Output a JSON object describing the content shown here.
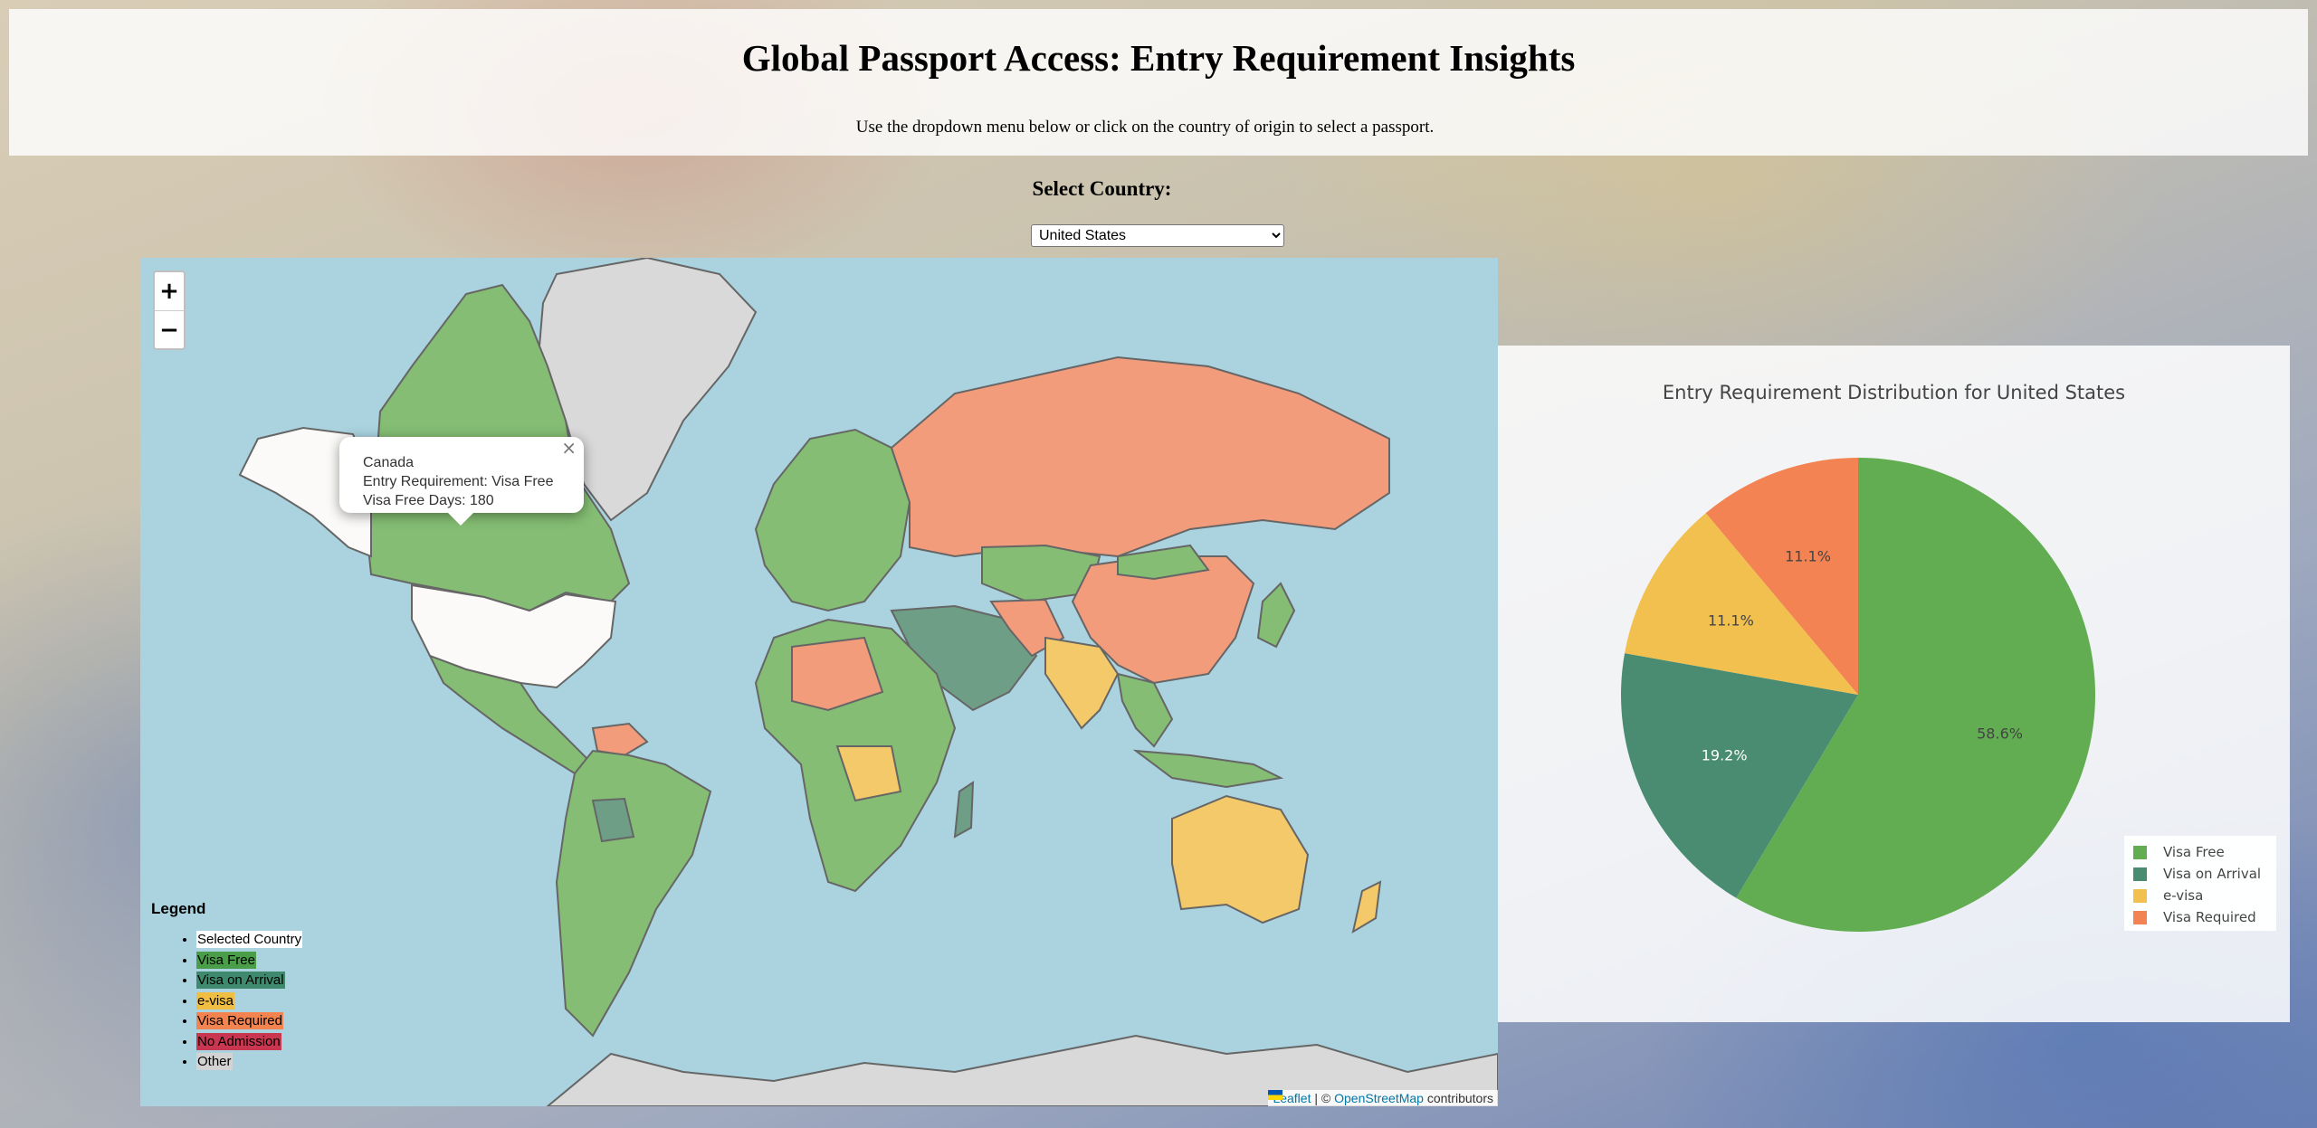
{
  "header": {
    "title": "Global Passport Access: Entry Requirement Insights",
    "subtitle": "Use the dropdown menu below or click on the country of origin to select a passport."
  },
  "selector": {
    "label": "Select Country:",
    "selected": "United States"
  },
  "map": {
    "zoom_in": "+",
    "zoom_out": "−",
    "popup": {
      "close": "×",
      "country": "Canada",
      "requirement": "Entry Requirement: Visa Free",
      "days": "Visa Free Days: 180"
    },
    "legend": {
      "title": "Legend",
      "items": [
        {
          "label": "Selected Country",
          "color": "#ffffff"
        },
        {
          "label": "Visa Free",
          "color": "#4a9e4a"
        },
        {
          "label": "Visa on Arrival",
          "color": "#3f8a6e"
        },
        {
          "label": "e-visa",
          "color": "#f0be43"
        },
        {
          "label": "Visa Required",
          "color": "#f4844f"
        },
        {
          "label": "No Admission",
          "color": "#c8374f"
        },
        {
          "label": "Other",
          "color": "#d3d3d3"
        }
      ]
    },
    "attribution": {
      "leaflet": "Leaflet",
      "separator": "| ©",
      "osm": "OpenStreetMap",
      "suffix": "contributors"
    },
    "colors": {
      "ocean": "#aad3df",
      "visa_free": "#84bd73",
      "visa_on_arrival": "#6e9e86",
      "e_visa": "#f3c96a",
      "visa_required": "#f39c7c",
      "selected": "#fbfaf8",
      "other": "#d9d9d9"
    }
  },
  "chart_data": {
    "type": "pie",
    "title": "Entry Requirement Distribution for United States",
    "slices": [
      {
        "label": "Visa Free",
        "value": 58.6,
        "display": "58.6%",
        "color": "#62ad52"
      },
      {
        "label": "Visa on Arrival",
        "value": 19.2,
        "display": "19.2%",
        "color": "#4a8c72"
      },
      {
        "label": "e-visa",
        "value": 11.1,
        "display": "11.1%",
        "color": "#f1c04e"
      },
      {
        "label": "Visa Required",
        "value": 11.1,
        "display": "11.1%",
        "color": "#f38353"
      }
    ],
    "legend_position": "bottom-right"
  }
}
